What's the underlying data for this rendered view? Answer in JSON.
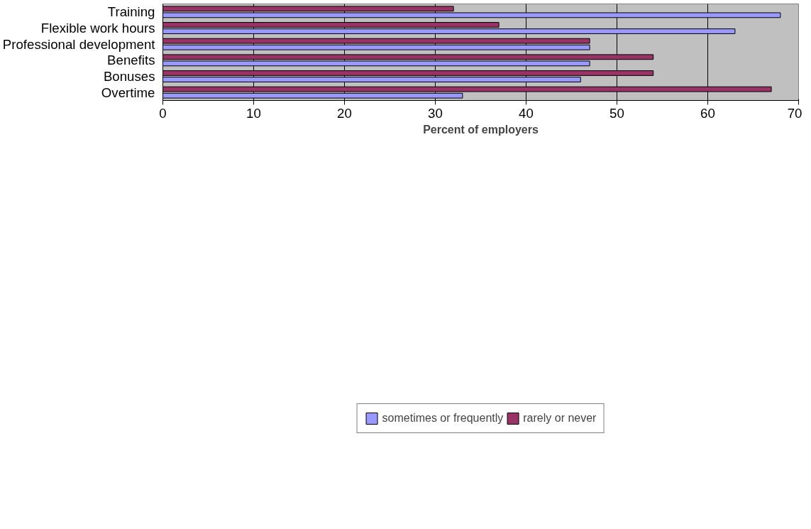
{
  "chart_data": {
    "type": "bar",
    "orientation": "horizontal",
    "xlabel": "Percent of employers",
    "categories": [
      "Training",
      "Flexible work hours",
      "Professional development",
      "Benefits",
      "Bonuses",
      "Overtime"
    ],
    "series": [
      {
        "name": "sometimes or frequently",
        "color": "#9999ff",
        "values": [
          68,
          63,
          47,
          47,
          46,
          33
        ]
      },
      {
        "name": "rarely or never",
        "color": "#993366",
        "values": [
          32,
          37,
          47,
          54,
          54,
          67
        ]
      }
    ],
    "xlim": [
      0,
      70
    ],
    "xticks": [
      0,
      10,
      20,
      30,
      40,
      50,
      60,
      70
    ],
    "grid": "x",
    "legend": "bottom"
  }
}
